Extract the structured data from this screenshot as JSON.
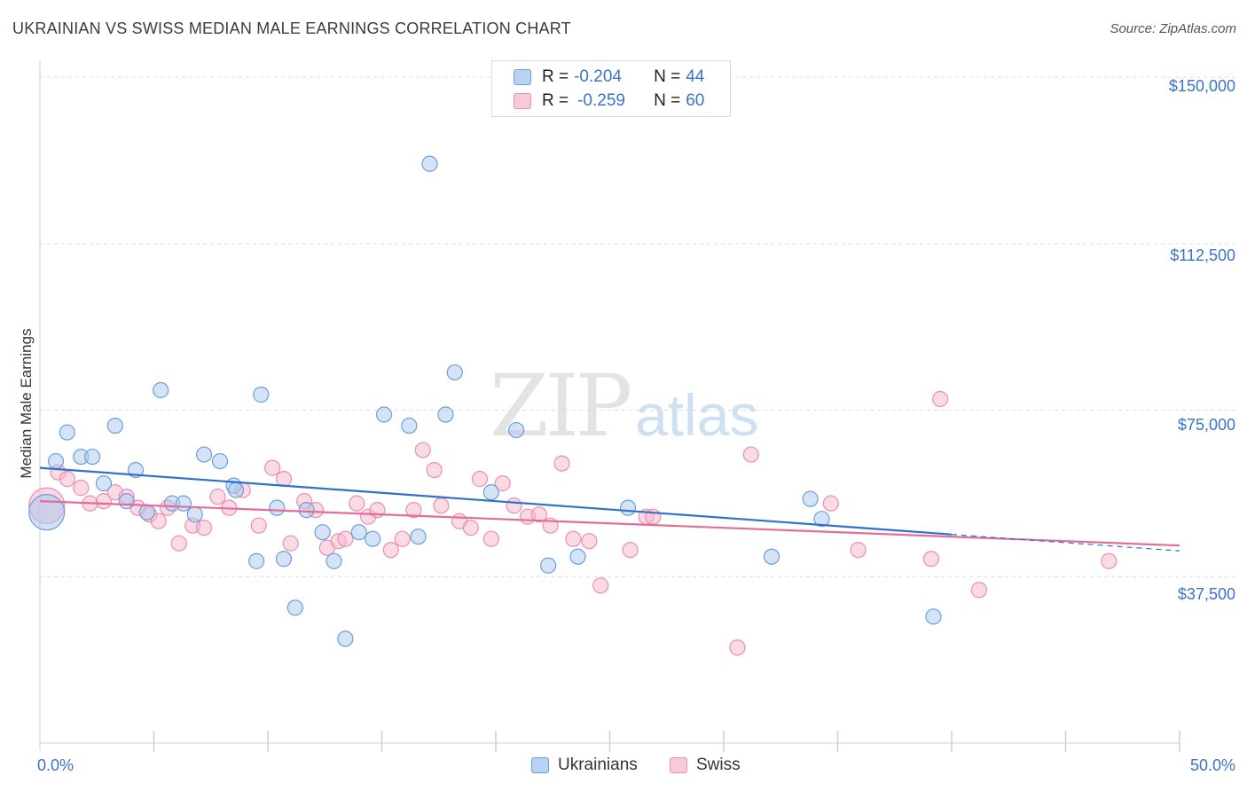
{
  "title": "UKRAINIAN VS SWISS MEDIAN MALE EARNINGS CORRELATION CHART",
  "source": "Source: ZipAtlas.com",
  "watermark": {
    "zip": "ZIP",
    "atlas": "atlas"
  },
  "legend": {
    "rows": [
      {
        "r_label": "R = ",
        "r_value": "-0.204",
        "n_label": "N = ",
        "n_value": "44"
      },
      {
        "r_label": "R = ",
        "r_value": "-0.259",
        "n_label": "N = ",
        "n_value": "60"
      }
    ]
  },
  "bottom_legend": {
    "series_a": "Ukrainians",
    "series_b": "Swiss"
  },
  "colors": {
    "ukrainians_fill": "#a9c8ee",
    "ukrainians_stroke": "#6d9fd8",
    "ukrainians_line": "#2f72c8",
    "swiss_fill": "#f6b7cb",
    "swiss_stroke": "#ea8fae",
    "swiss_line": "#e46c98",
    "axis_text": "#3b73c9",
    "grid": "#dddddd"
  },
  "chart_data": {
    "type": "scatter",
    "title": "UKRAINIAN VS SWISS MEDIAN MALE EARNINGS CORRELATION CHART",
    "xlabel": "",
    "ylabel": "Median Male Earnings",
    "xlim": [
      0,
      50
    ],
    "ylim": [
      0,
      153000
    ],
    "x_tick_labels": [
      "0.0%",
      "50.0%"
    ],
    "y_ticks": [
      37500,
      75000,
      112500,
      150000
    ],
    "y_tick_labels": [
      "$37,500",
      "$75,000",
      "$112,500",
      "$150,000"
    ],
    "grid": "horizontal dashed",
    "series": [
      {
        "name": "Ukrainians",
        "trend": {
          "x": [
            0,
            40
          ],
          "y": [
            62000,
            47000
          ],
          "dashed_extension": {
            "x": [
              40,
              50
            ],
            "y": [
              47000,
              43300
            ]
          }
        },
        "points": [
          {
            "x": 0.3,
            "y": 52000,
            "big": true
          },
          {
            "x": 0.7,
            "y": 63500
          },
          {
            "x": 1.2,
            "y": 70000
          },
          {
            "x": 1.8,
            "y": 64500
          },
          {
            "x": 2.3,
            "y": 64500
          },
          {
            "x": 2.8,
            "y": 58500
          },
          {
            "x": 3.3,
            "y": 71500
          },
          {
            "x": 3.8,
            "y": 54500
          },
          {
            "x": 4.2,
            "y": 61500
          },
          {
            "x": 4.7,
            "y": 52000
          },
          {
            "x": 5.3,
            "y": 79500
          },
          {
            "x": 5.8,
            "y": 54000
          },
          {
            "x": 6.3,
            "y": 54000
          },
          {
            "x": 6.8,
            "y": 51500
          },
          {
            "x": 7.2,
            "y": 65000
          },
          {
            "x": 7.9,
            "y": 63500
          },
          {
            "x": 8.5,
            "y": 58000
          },
          {
            "x": 8.6,
            "y": 57000
          },
          {
            "x": 9.5,
            "y": 41000
          },
          {
            "x": 9.7,
            "y": 78500
          },
          {
            "x": 10.4,
            "y": 53000
          },
          {
            "x": 10.7,
            "y": 41500
          },
          {
            "x": 11.2,
            "y": 30500
          },
          {
            "x": 11.7,
            "y": 52500
          },
          {
            "x": 12.4,
            "y": 47500
          },
          {
            "x": 12.9,
            "y": 41000
          },
          {
            "x": 13.4,
            "y": 23500
          },
          {
            "x": 14.0,
            "y": 47500
          },
          {
            "x": 14.6,
            "y": 46000
          },
          {
            "x": 15.1,
            "y": 74000
          },
          {
            "x": 16.2,
            "y": 71500
          },
          {
            "x": 16.6,
            "y": 46500
          },
          {
            "x": 17.1,
            "y": 130500
          },
          {
            "x": 17.8,
            "y": 74000
          },
          {
            "x": 18.2,
            "y": 83500
          },
          {
            "x": 19.8,
            "y": 56500
          },
          {
            "x": 20.9,
            "y": 70500
          },
          {
            "x": 22.3,
            "y": 40000
          },
          {
            "x": 23.6,
            "y": 42000
          },
          {
            "x": 25.8,
            "y": 53000
          },
          {
            "x": 32.1,
            "y": 42000
          },
          {
            "x": 33.8,
            "y": 55000
          },
          {
            "x": 34.3,
            "y": 50500
          },
          {
            "x": 39.2,
            "y": 28500
          }
        ]
      },
      {
        "name": "Swiss",
        "trend": {
          "x": [
            0,
            50
          ],
          "y": [
            54500,
            44500
          ]
        },
        "points": [
          {
            "x": 0.3,
            "y": 53500,
            "big": true
          },
          {
            "x": 0.8,
            "y": 61000
          },
          {
            "x": 1.2,
            "y": 59500
          },
          {
            "x": 1.8,
            "y": 57500
          },
          {
            "x": 2.2,
            "y": 54000
          },
          {
            "x": 2.8,
            "y": 54500
          },
          {
            "x": 3.3,
            "y": 56500
          },
          {
            "x": 3.8,
            "y": 55500
          },
          {
            "x": 4.3,
            "y": 53000
          },
          {
            "x": 4.8,
            "y": 51500
          },
          {
            "x": 5.2,
            "y": 50000
          },
          {
            "x": 5.6,
            "y": 53000
          },
          {
            "x": 6.1,
            "y": 45000
          },
          {
            "x": 6.7,
            "y": 49000
          },
          {
            "x": 7.2,
            "y": 48500
          },
          {
            "x": 7.8,
            "y": 55500
          },
          {
            "x": 8.3,
            "y": 53000
          },
          {
            "x": 8.9,
            "y": 57000
          },
          {
            "x": 9.6,
            "y": 49000
          },
          {
            "x": 10.2,
            "y": 62000
          },
          {
            "x": 10.7,
            "y": 59500
          },
          {
            "x": 11.0,
            "y": 45000
          },
          {
            "x": 11.6,
            "y": 54500
          },
          {
            "x": 12.1,
            "y": 52500
          },
          {
            "x": 12.6,
            "y": 44000
          },
          {
            "x": 13.1,
            "y": 45500
          },
          {
            "x": 13.4,
            "y": 46000
          },
          {
            "x": 13.9,
            "y": 54000
          },
          {
            "x": 14.4,
            "y": 51000
          },
          {
            "x": 14.8,
            "y": 52500
          },
          {
            "x": 15.4,
            "y": 43500
          },
          {
            "x": 15.9,
            "y": 46000
          },
          {
            "x": 16.4,
            "y": 52500
          },
          {
            "x": 16.8,
            "y": 66000
          },
          {
            "x": 17.3,
            "y": 61500
          },
          {
            "x": 17.6,
            "y": 53500
          },
          {
            "x": 18.4,
            "y": 50000
          },
          {
            "x": 18.9,
            "y": 48500
          },
          {
            "x": 19.3,
            "y": 59500
          },
          {
            "x": 19.8,
            "y": 46000
          },
          {
            "x": 20.3,
            "y": 58500
          },
          {
            "x": 20.8,
            "y": 53500
          },
          {
            "x": 21.4,
            "y": 51000
          },
          {
            "x": 21.9,
            "y": 51500
          },
          {
            "x": 22.4,
            "y": 49000
          },
          {
            "x": 22.9,
            "y": 63000
          },
          {
            "x": 23.4,
            "y": 46000
          },
          {
            "x": 24.1,
            "y": 45500
          },
          {
            "x": 24.6,
            "y": 35500
          },
          {
            "x": 25.9,
            "y": 43500
          },
          {
            "x": 26.6,
            "y": 51000
          },
          {
            "x": 26.9,
            "y": 51000
          },
          {
            "x": 30.6,
            "y": 21500
          },
          {
            "x": 31.2,
            "y": 65000
          },
          {
            "x": 34.7,
            "y": 54000
          },
          {
            "x": 35.9,
            "y": 43500
          },
          {
            "x": 39.1,
            "y": 41500
          },
          {
            "x": 39.5,
            "y": 77500
          },
          {
            "x": 41.2,
            "y": 34500
          },
          {
            "x": 46.9,
            "y": 41000
          }
        ]
      }
    ]
  }
}
